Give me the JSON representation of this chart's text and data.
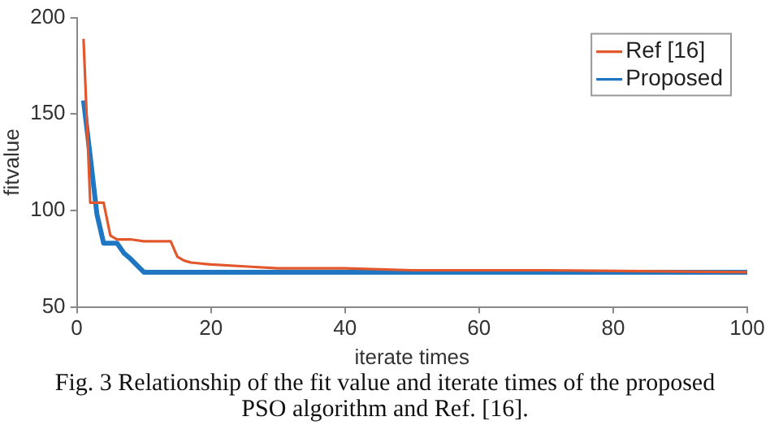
{
  "chart_data": {
    "type": "line",
    "xlabel": "iterate times",
    "ylabel": "fitvalue",
    "xlim": [
      0,
      100
    ],
    "xticks": [
      0,
      20,
      40,
      60,
      80,
      100
    ],
    "ylim": [
      50,
      200
    ],
    "yticks": [
      50,
      100,
      150,
      200
    ],
    "grid": false,
    "legend": "top right",
    "marker": "none",
    "series": [
      {
        "name": "Ref [16]",
        "color": "#e2572b",
        "x": [
          1,
          2,
          3,
          4,
          5,
          6,
          8,
          10,
          14,
          15,
          16,
          17,
          20,
          25,
          30,
          40,
          50,
          70,
          100
        ],
        "values": [
          189,
          104,
          104,
          104,
          87,
          85,
          85,
          84,
          84,
          76,
          74,
          73,
          72,
          71,
          70,
          70,
          69,
          69,
          68
        ]
      },
      {
        "name": "Proposed",
        "color": "#1f77c4",
        "x": [
          1,
          2,
          3,
          4,
          5,
          6,
          7,
          8,
          10,
          20,
          50,
          100
        ],
        "values": [
          157,
          128,
          98,
          83,
          83,
          83,
          78,
          75,
          68,
          68,
          68,
          68
        ]
      }
    ],
    "annotations": [
      "Fig. 3 Relationship of the fit value and iterate times of the proposed PSO algorithm and Ref. [16]."
    ]
  }
}
